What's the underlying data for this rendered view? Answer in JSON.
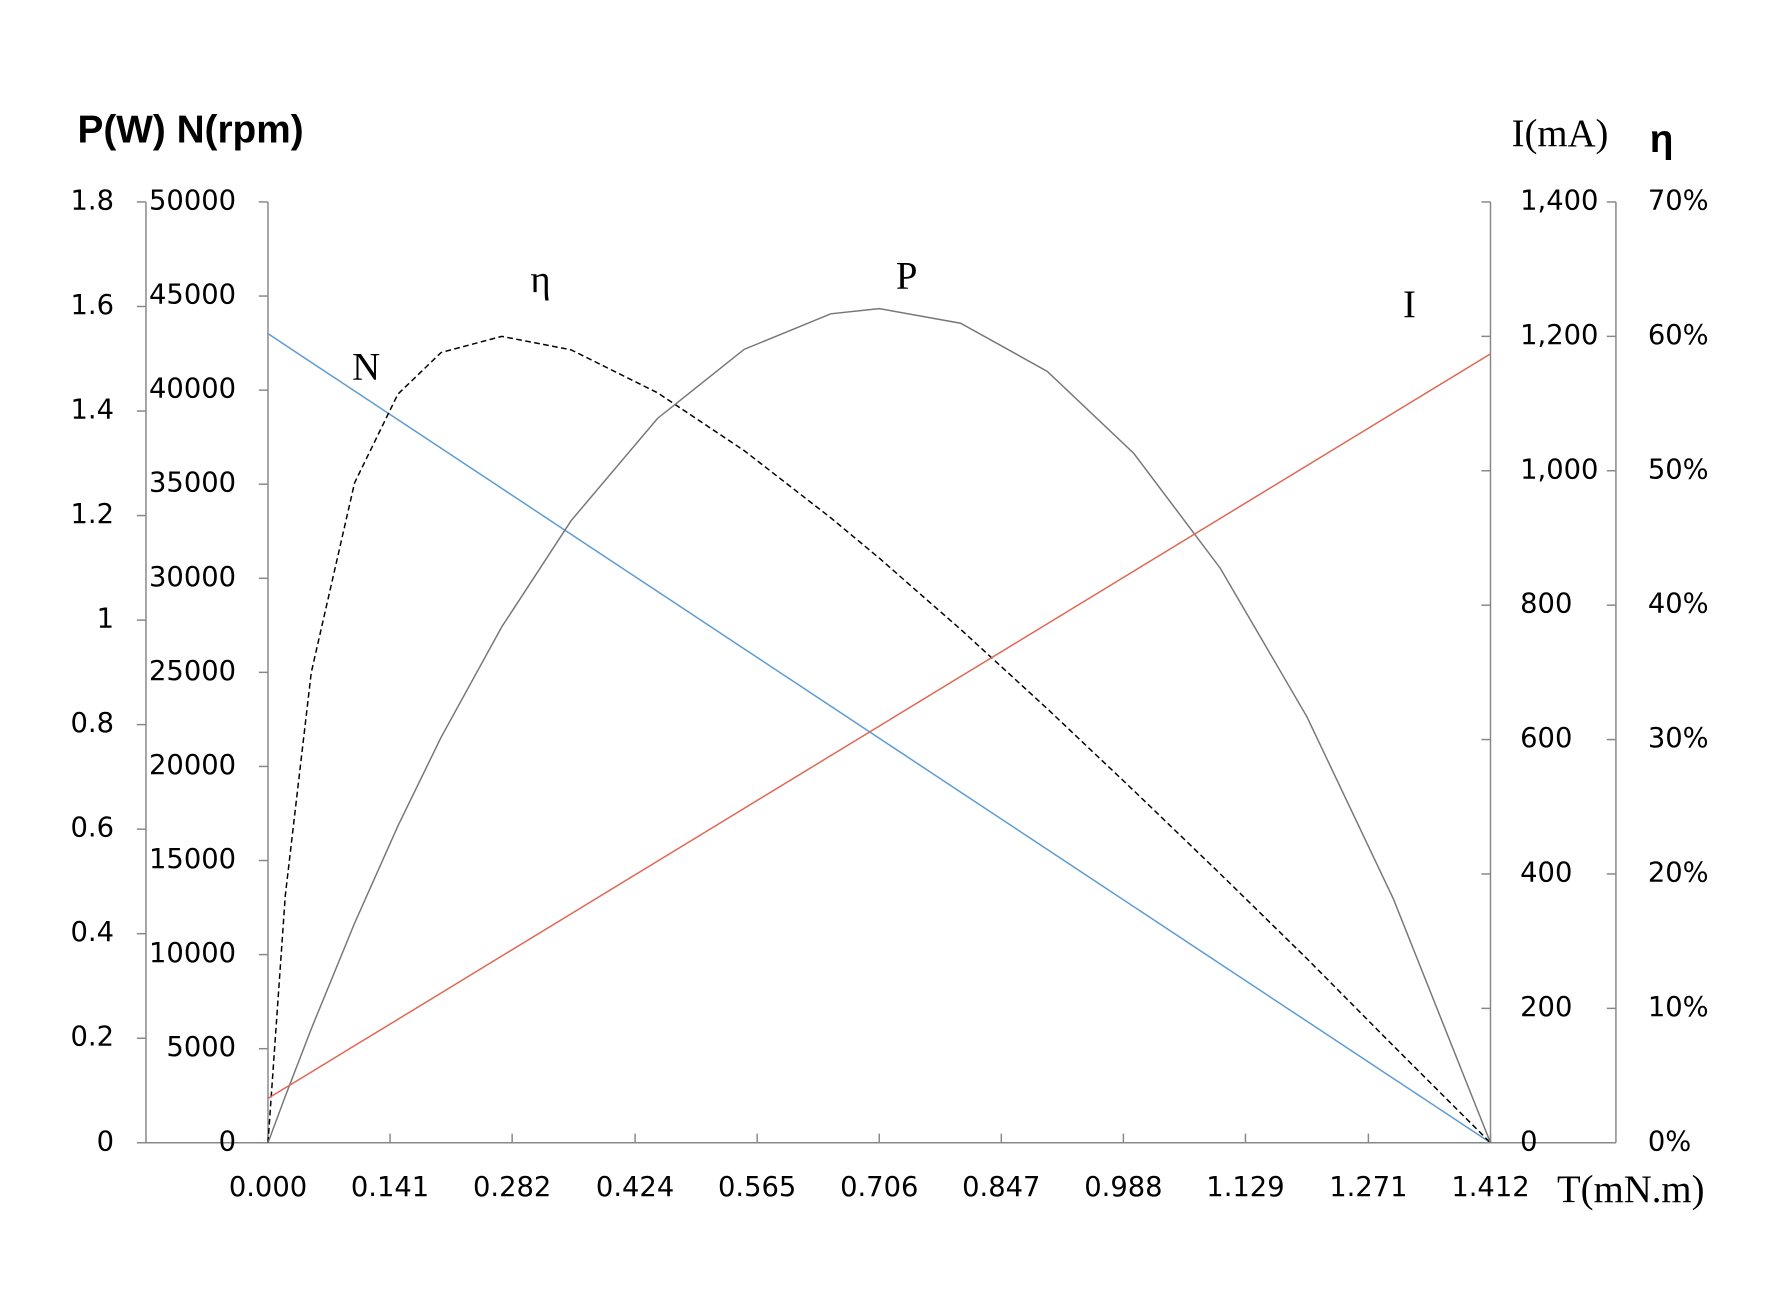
{
  "chart_data": {
    "type": "line",
    "y_label": "P(W) N(rpm)",
    "y3_label": "I(mA)",
    "y4_label": "η",
    "x_label": "T(mN.m)",
    "x": [
      0,
      0.02,
      0.05,
      0.1,
      0.15,
      0.2,
      0.27,
      0.35,
      0.45,
      0.55,
      0.65,
      0.706,
      0.8,
      0.9,
      1.0,
      1.1,
      1.2,
      1.3,
      1.412
    ],
    "xlim": [
      0,
      1.412
    ],
    "xticks": [
      {
        "value": 0,
        "label": "0.000"
      },
      0.141,
      0.282,
      0.424,
      0.565,
      0.706,
      0.847,
      0.988,
      1.129,
      1.271,
      1.412
    ],
    "ylim": [
      0,
      1.8
    ],
    "yticks": [
      0,
      0.2,
      0.4,
      0.6,
      0.8,
      1,
      1.2,
      1.4,
      1.6,
      1.8
    ],
    "y2lim": [
      0,
      50000
    ],
    "y2ticks": [
      0,
      5000,
      10000,
      15000,
      20000,
      25000,
      30000,
      35000,
      40000,
      45000,
      50000
    ],
    "y3lim": [
      0,
      1400
    ],
    "y3ticks": [
      0,
      200,
      400,
      600,
      800,
      {
        "value": 1000,
        "label": "1,000"
      },
      {
        "value": 1200,
        "label": "1,200"
      },
      {
        "value": 1400,
        "label": "1,400"
      }
    ],
    "y4lim": [
      0,
      70
    ],
    "y4ticks": [
      {
        "value": 0,
        "label": "0%"
      },
      {
        "value": 10,
        "label": "10%"
      },
      {
        "value": 20,
        "label": "20%"
      },
      {
        "value": 30,
        "label": "30%"
      },
      {
        "value": 40,
        "label": "40%"
      },
      {
        "value": 50,
        "label": "50%"
      },
      {
        "value": 60,
        "label": "60%"
      },
      {
        "value": 70,
        "label": "70%"
      }
    ],
    "series": [
      {
        "name": "N",
        "color": "#5b9bd5",
        "axis": "y2",
        "dashed": false,
        "values": [
          43000,
          42391,
          41477,
          39955,
          38432,
          36909,
          34778,
          32341,
          29296,
          26251,
          23205,
          21500,
          18637,
          15592,
          12547,
          9501,
          6456,
          3411,
          0
        ]
      },
      {
        "name": "η",
        "color": "#000000",
        "axis": "y4",
        "dashed": true,
        "values": [
          0,
          18.4,
          35.0,
          49.1,
          55.7,
          58.8,
          60.0,
          59.0,
          55.8,
          51.5,
          46.5,
          43.5,
          38.2,
          32.3,
          26.2,
          20.0,
          13.7,
          7.2,
          0
        ]
      },
      {
        "name": "P",
        "color": "#777777",
        "axis": "y",
        "dashed": false,
        "values": [
          0,
          0.089,
          0.218,
          0.42,
          0.606,
          0.776,
          0.987,
          1.19,
          1.386,
          1.518,
          1.586,
          1.596,
          1.568,
          1.476,
          1.319,
          1.099,
          0.815,
          0.466,
          0
        ]
      },
      {
        "name": "I",
        "color": "#e06652",
        "axis": "y3",
        "dashed": false,
        "values": [
          66,
          81.7,
          105.2,
          144.5,
          183.7,
          222.9,
          277.9,
          340.7,
          419.1,
          497.6,
          576.1,
          620,
          693.8,
          772.2,
          850.7,
          929.2,
          1007.6,
          1086.1,
          1174
        ]
      }
    ]
  }
}
